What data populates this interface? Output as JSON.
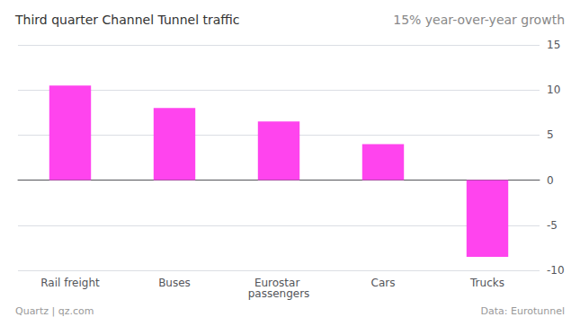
{
  "chart_data": {
    "type": "bar",
    "title": "Third quarter Channel Tunnel traffic",
    "subtitle": "15% year-over-year growth",
    "annotations": [
      "Quartz | qz.com",
      "Data: Eurotunnel"
    ],
    "categories": [
      "Rail freight",
      "Buses",
      "Eurostar passengers",
      "Cars",
      "Trucks"
    ],
    "values": [
      10.5,
      8.0,
      6.5,
      4.0,
      -8.5
    ],
    "color": "#ff44ee",
    "ylim": [
      -10,
      15
    ],
    "yticks": [
      -10,
      -5,
      0,
      5,
      10,
      15
    ],
    "grid": true
  }
}
